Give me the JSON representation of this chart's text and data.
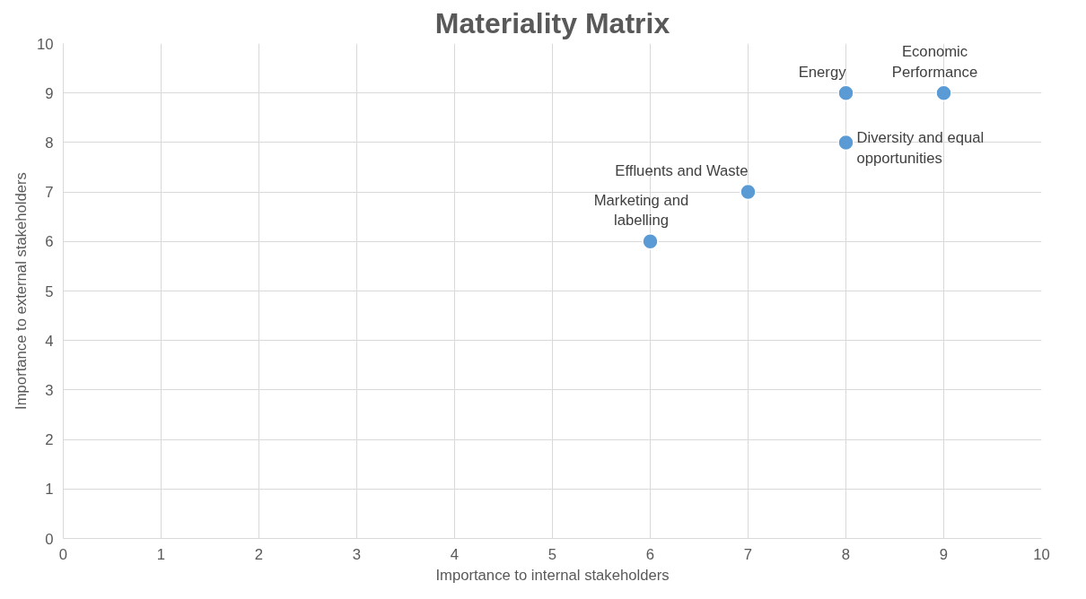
{
  "chart_data": {
    "type": "scatter",
    "title": "Materiality Matrix",
    "xlabel": "Importance to internal stakeholders",
    "ylabel": "Importance to external stakeholders",
    "x": [
      6,
      7,
      8,
      8,
      9
    ],
    "series": [
      {
        "color": "#5b9bd5",
        "values": [
          6,
          7,
          9,
          8,
          9
        ]
      }
    ],
    "xlim": [
      0,
      10
    ],
    "ylim": [
      0,
      10
    ],
    "xticks": [
      0,
      1,
      2,
      3,
      4,
      5,
      6,
      7,
      8,
      9,
      10
    ],
    "yticks": [
      0,
      1,
      2,
      3,
      4,
      5,
      6,
      7,
      8,
      9,
      10
    ],
    "grid": true,
    "marker": "circle",
    "annotations": [
      {
        "text": "Marketing and labelling",
        "x": 6,
        "y": 6
      },
      {
        "text": "Effluents and Waste",
        "x": 7,
        "y": 7
      },
      {
        "text": "Energy",
        "x": 8,
        "y": 9
      },
      {
        "text": "Diversity and equal opportunities",
        "x": 8,
        "y": 8
      },
      {
        "text": "Economic Performance",
        "x": 9,
        "y": 9
      }
    ]
  }
}
